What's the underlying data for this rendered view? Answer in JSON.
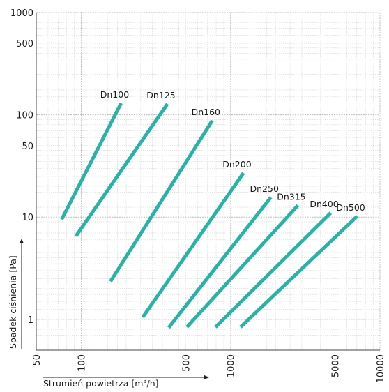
{
  "chart_data": {
    "type": "line",
    "title": "",
    "xlabel": "Strumień powietrza [m³/h]",
    "xlabel_base": "Strumień powietrza [m",
    "xlabel_sup": "3",
    "xlabel_tail": "/h]",
    "ylabel": "Spadek ciśnienia [Pa]",
    "xscale": "log",
    "yscale": "log",
    "xlim": [
      50,
      10000
    ],
    "ylim": [
      0.5,
      1000
    ],
    "x_tick_labels": [
      "50",
      "100",
      "500",
      "1000",
      "5000",
      "10000"
    ],
    "x_ticks": [
      50,
      100,
      500,
      1000,
      5000,
      10000
    ],
    "y_tick_labels": [
      "1",
      "10",
      "50",
      "100",
      "500",
      "1000"
    ],
    "y_ticks": [
      1,
      10,
      50,
      100,
      500,
      1000
    ],
    "grid": true,
    "line_color": "#29b3a6",
    "series": [
      {
        "name": "Dn100",
        "x": [
          74,
          185
        ],
        "y": [
          9.5,
          130
        ]
      },
      {
        "name": "Dn125",
        "x": [
          92,
          378
        ],
        "y": [
          6.5,
          128
        ]
      },
      {
        "name": "Dn160",
        "x": [
          157,
          755
        ],
        "y": [
          2.35,
          88
        ]
      },
      {
        "name": "Dn200",
        "x": [
          258,
          1220
        ],
        "y": [
          1.05,
          27
        ]
      },
      {
        "name": "Dn250",
        "x": [
          385,
          1860
        ],
        "y": [
          0.83,
          15.6
        ]
      },
      {
        "name": "Dn315",
        "x": [
          510,
          2820
        ],
        "y": [
          0.84,
          13
        ]
      },
      {
        "name": "Dn400",
        "x": [
          792,
          4680
        ],
        "y": [
          0.84,
          11
        ]
      },
      {
        "name": "Dn500",
        "x": [
          1165,
          7040
        ],
        "y": [
          0.84,
          10.2
        ]
      }
    ]
  }
}
